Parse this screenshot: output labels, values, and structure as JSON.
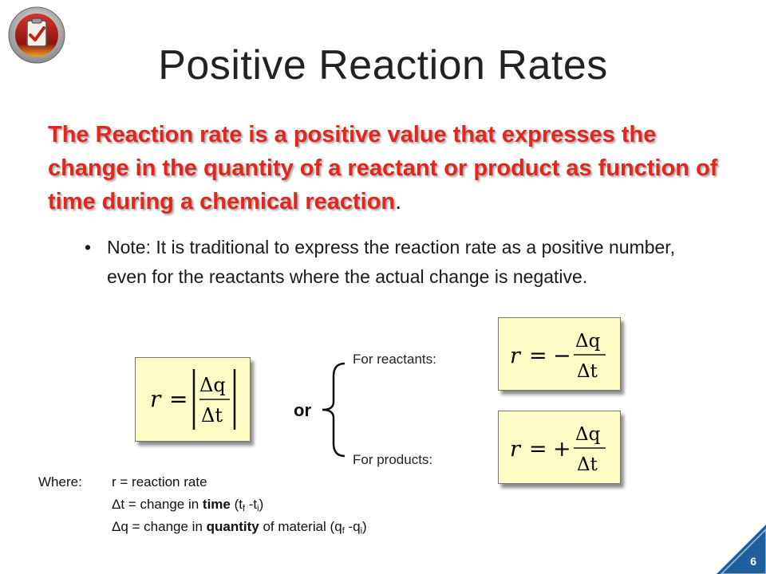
{
  "slide": {
    "title": "Positive Reaction Rates",
    "headline": "The Reaction rate is a positive value that expresses the change in the quantity of a reactant or product as function of time during a chemical reaction",
    "headline_end": ".",
    "note": "Note: It is traditional to express the reaction rate as a positive number, even for the reactants where the actual change is negative.",
    "bullet": "•",
    "page_number": "6"
  },
  "formulas": {
    "r": "r",
    "eq": "=",
    "minus": "−",
    "plus": "+",
    "numerator": "Δq",
    "denominator": "Δt"
  },
  "labels": {
    "for_reactants": "For reactants:",
    "for_products": "For products:",
    "or": "or"
  },
  "where": {
    "label": "Where:",
    "line1": "r = reaction rate",
    "line2_prefix": "Δt = change in ",
    "line2_bold": "time",
    "line2_suffix": " (t",
    "line2_sub1": "f",
    "line2_mid": " -t",
    "line2_sub2": "i",
    "line2_end": ")",
    "line3_prefix": "Δq = change in ",
    "line3_bold": "quantity",
    "line3_suffix": " of material (q",
    "line3_sub1": "f",
    "line3_mid": " -q",
    "line3_sub2": "i",
    "line3_end": ")"
  },
  "colors": {
    "headline": "#e0261d",
    "formula_box": "#fcfcc4",
    "page_badge": "#1f5f9e"
  },
  "icons": {
    "logo": "clipboard-checkmark-icon"
  }
}
